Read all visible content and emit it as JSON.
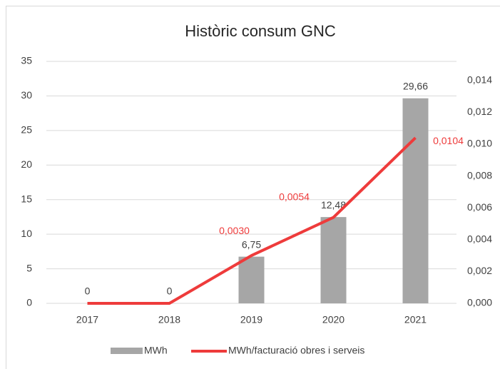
{
  "chart_data": {
    "type": "bar_line",
    "title": "Històric consum GNC",
    "categories": [
      "2017",
      "2018",
      "2019",
      "2020",
      "2021"
    ],
    "series": [
      {
        "name": "MWh",
        "type": "bar",
        "color": "#a6a6a6",
        "values": [
          0,
          0,
          6.75,
          12.48,
          29.66
        ],
        "value_labels": [
          "0",
          "0",
          "6,75",
          "12,48",
          "29,66"
        ]
      },
      {
        "name": "MWh/facturació obres i serveis",
        "type": "line",
        "axis": "y2",
        "color": "#ee3b3b",
        "values": [
          0,
          0,
          0.003,
          0.0054,
          0.0104
        ],
        "value_labels": [
          null,
          null,
          "0,0030",
          "0,0054",
          "0,0104"
        ]
      }
    ],
    "ylim": [
      0,
      35
    ],
    "yticks": [
      0,
      5,
      10,
      15,
      20,
      25,
      30,
      35
    ],
    "y2lim": [
      0,
      0.0152
    ],
    "y2ticks": [
      {
        "value": 0,
        "label": "0,000"
      },
      {
        "value": 0.002,
        "label": "0,002"
      },
      {
        "value": 0.004,
        "label": "0,004"
      },
      {
        "value": 0.006,
        "label": "0,006"
      },
      {
        "value": 0.008,
        "label": "0,008"
      },
      {
        "value": 0.01,
        "label": "0,010"
      },
      {
        "value": 0.012,
        "label": "0,012"
      },
      {
        "value": 0.014,
        "label": "0,014"
      }
    ],
    "grid": true,
    "legend": "bottom"
  }
}
